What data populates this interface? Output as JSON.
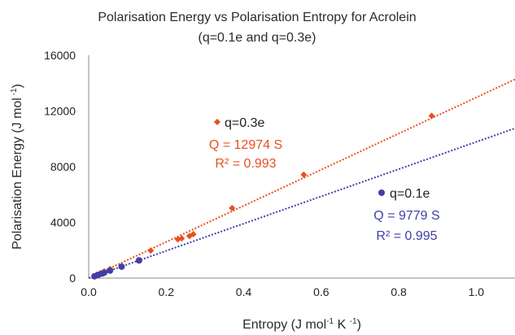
{
  "chart_data": {
    "type": "scatter",
    "title": [
      "Polarisation Energy vs Polarisation Entropy for Acrolein",
      "(q=0.1e and q=0.3e)"
    ],
    "xlabel": {
      "main": "Entropy (J mol",
      "sup1": "-1",
      "mid": " K ",
      "sup2": "-1",
      "end": ")"
    },
    "ylabel": {
      "main": "Polarisation Energy (J mol",
      "sup1": " -1",
      "end": ")"
    },
    "xlim": [
      0,
      1.1
    ],
    "ylim": [
      0,
      16000
    ],
    "xticks": [
      0,
      0.2,
      0.4,
      0.6,
      0.8,
      1.0
    ],
    "xtick_labels": [
      "0.0",
      "0.2",
      "0.4",
      "0.6",
      "0.8",
      "1.0"
    ],
    "yticks": [
      0,
      4000,
      8000,
      12000,
      16000
    ],
    "ytick_labels": [
      "0",
      "4000",
      "8000",
      "12000",
      "16000"
    ],
    "grid": false,
    "series": [
      {
        "name": "q=0.3e",
        "marker": "diamond",
        "color": "#E8501E",
        "trendline_slope": 12974,
        "fit_label": "Q = 12974 S",
        "r2_label": "R² = 0.993",
        "points": [
          [
            0.02,
            230
          ],
          [
            0.03,
            350
          ],
          [
            0.04,
            480
          ],
          [
            0.055,
            650
          ],
          [
            0.16,
            1980
          ],
          [
            0.23,
            2780
          ],
          [
            0.24,
            2850
          ],
          [
            0.26,
            3020
          ],
          [
            0.27,
            3150
          ],
          [
            0.37,
            5030
          ],
          [
            0.555,
            7420
          ],
          [
            0.885,
            11650
          ]
        ]
      },
      {
        "name": "q=0.1e",
        "marker": "circle",
        "color": "#4040A8",
        "trendline_slope": 9779,
        "fit_label": "Q = 9779 S",
        "r2_label": "R² = 0.995",
        "points": [
          [
            0.015,
            130
          ],
          [
            0.025,
            230
          ],
          [
            0.035,
            330
          ],
          [
            0.04,
            390
          ],
          [
            0.055,
            540
          ],
          [
            0.085,
            820
          ],
          [
            0.13,
            1270
          ]
        ]
      }
    ]
  }
}
